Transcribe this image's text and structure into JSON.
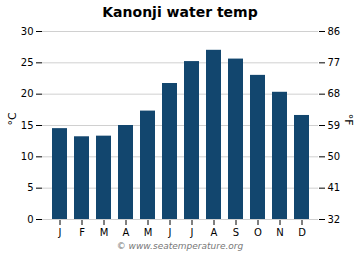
{
  "chart_data": {
    "type": "bar",
    "title": "Kanonji water temp",
    "categories": [
      "J",
      "F",
      "M",
      "A",
      "M",
      "J",
      "J",
      "A",
      "S",
      "O",
      "N",
      "D"
    ],
    "values": [
      14.5,
      13.2,
      13.3,
      15.0,
      17.3,
      21.7,
      25.2,
      27.0,
      25.6,
      23.0,
      20.3,
      16.6
    ],
    "color": "#12466e",
    "ylabel": "°C",
    "ylim": [
      0,
      30
    ],
    "yticks": [
      0,
      5,
      10,
      15,
      20,
      25,
      30
    ],
    "y2label": "°F",
    "y2lim": [
      32,
      86
    ],
    "y2ticks": [
      32,
      41,
      50,
      59,
      68,
      77,
      86
    ],
    "grid": true,
    "annotation": "© www.seatemperature.org"
  }
}
